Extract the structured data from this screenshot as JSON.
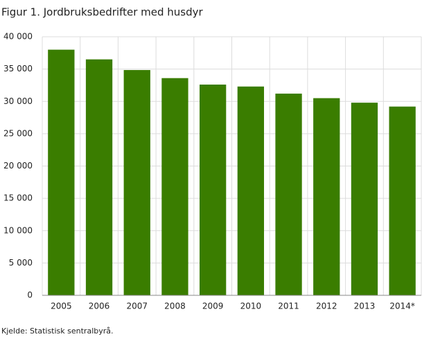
{
  "chart_data": {
    "type": "bar",
    "title": "Figur 1. Jordbruksbedrifter med husdyr",
    "source": "Kjelde: Statistisk sentralbyrå.",
    "categories": [
      "2005",
      "2006",
      "2007",
      "2008",
      "2009",
      "2010",
      "2011",
      "2012",
      "2013",
      "2014*"
    ],
    "values": [
      38000,
      36500,
      34850,
      33600,
      32600,
      32300,
      31200,
      30500,
      29800,
      29200
    ],
    "color": "#3a7d00",
    "ylim": [
      0,
      40000
    ],
    "yticks": [
      0,
      {
        "value": 5000,
        "label": "5 000"
      },
      {
        "value": 10000,
        "label": "10 000"
      },
      {
        "value": 15000,
        "label": "15 000"
      },
      {
        "value": 20000,
        "label": "20 000"
      },
      {
        "value": 25000,
        "label": "25 000"
      },
      {
        "value": 30000,
        "label": "30 000"
      },
      {
        "value": 35000,
        "label": "35 000"
      },
      {
        "value": 40000,
        "label": "40 000"
      }
    ],
    "grid": true
  }
}
